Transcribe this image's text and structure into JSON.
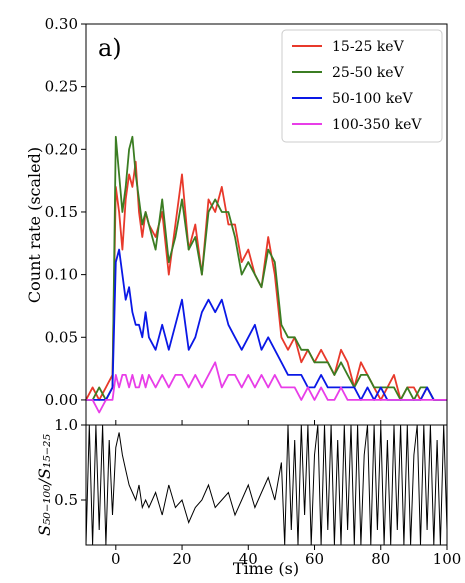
{
  "chart_data": {
    "type": "line",
    "panel_label": "a)",
    "xlabel": "Time (s)",
    "top_panel": {
      "ylabel": "Count rate (scaled)",
      "xlim": [
        -9,
        100
      ],
      "ylim": [
        -0.02,
        0.3
      ],
      "yticks": [
        "0.00",
        "0.05",
        "0.10",
        "0.15",
        "0.20",
        "0.25",
        "0.30"
      ],
      "yticks_values": [
        0,
        0.05,
        0.1,
        0.15,
        0.2,
        0.25,
        0.3
      ],
      "legend_position": "top-right",
      "series": [
        {
          "name": "15-25 keV",
          "color": "#e8392b",
          "x": [
            -9,
            -7,
            -5,
            -3,
            -1,
            0,
            1,
            2,
            3,
            4,
            5,
            6,
            7,
            8,
            9,
            10,
            12,
            14,
            16,
            18,
            20,
            22,
            24,
            26,
            28,
            30,
            32,
            34,
            36,
            38,
            40,
            42,
            44,
            46,
            48,
            50,
            52,
            54,
            56,
            58,
            60,
            62,
            64,
            66,
            68,
            70,
            72,
            74,
            76,
            78,
            80,
            82,
            84,
            86,
            88,
            90,
            92,
            94,
            96,
            98,
            100
          ],
          "y": [
            0.0,
            0.01,
            0.0,
            0.01,
            0.02,
            0.17,
            0.15,
            0.12,
            0.16,
            0.18,
            0.17,
            0.19,
            0.15,
            0.13,
            0.15,
            0.14,
            0.13,
            0.15,
            0.1,
            0.14,
            0.18,
            0.12,
            0.14,
            0.1,
            0.16,
            0.15,
            0.17,
            0.14,
            0.14,
            0.11,
            0.12,
            0.1,
            0.09,
            0.13,
            0.1,
            0.05,
            0.04,
            0.05,
            0.03,
            0.04,
            0.03,
            0.04,
            0.03,
            0.02,
            0.04,
            0.03,
            0.01,
            0.03,
            0.02,
            0.01,
            0.0,
            0.01,
            0.02,
            0.0,
            0.01,
            0.01,
            0.0,
            0.01,
            0.0,
            0.0,
            0.0
          ]
        },
        {
          "name": "25-50 keV",
          "color": "#3b7d23",
          "x": [
            -9,
            -7,
            -5,
            -3,
            -1,
            0,
            1,
            2,
            3,
            4,
            5,
            6,
            7,
            8,
            9,
            10,
            12,
            14,
            16,
            18,
            20,
            22,
            24,
            26,
            28,
            30,
            32,
            34,
            36,
            38,
            40,
            42,
            44,
            46,
            48,
            50,
            52,
            54,
            56,
            58,
            60,
            62,
            64,
            66,
            68,
            70,
            72,
            74,
            76,
            78,
            80,
            82,
            84,
            86,
            88,
            90,
            92,
            94,
            96,
            98,
            100
          ],
          "y": [
            0.0,
            0.0,
            0.01,
            0.0,
            0.01,
            0.21,
            0.18,
            0.15,
            0.17,
            0.2,
            0.21,
            0.18,
            0.16,
            0.14,
            0.15,
            0.14,
            0.12,
            0.16,
            0.11,
            0.13,
            0.16,
            0.12,
            0.13,
            0.1,
            0.15,
            0.16,
            0.15,
            0.15,
            0.13,
            0.1,
            0.11,
            0.1,
            0.09,
            0.12,
            0.11,
            0.06,
            0.05,
            0.05,
            0.04,
            0.04,
            0.03,
            0.03,
            0.03,
            0.02,
            0.03,
            0.02,
            0.01,
            0.02,
            0.02,
            0.01,
            0.01,
            0.01,
            0.01,
            0.0,
            0.01,
            0.0,
            0.01,
            0.01,
            0.0,
            0.0,
            0.0
          ]
        },
        {
          "name": "50-100 keV",
          "color": "#0a18e6",
          "x": [
            -9,
            -7,
            -5,
            -3,
            -1,
            0,
            1,
            2,
            3,
            4,
            5,
            6,
            7,
            8,
            9,
            10,
            12,
            14,
            16,
            18,
            20,
            22,
            24,
            26,
            28,
            30,
            32,
            34,
            36,
            38,
            40,
            42,
            44,
            46,
            48,
            50,
            52,
            54,
            56,
            58,
            60,
            62,
            64,
            66,
            68,
            70,
            72,
            74,
            76,
            78,
            80,
            82,
            84,
            86,
            88,
            90,
            92,
            94,
            96,
            98,
            100
          ],
          "y": [
            0.0,
            0.0,
            0.0,
            0.0,
            0.01,
            0.11,
            0.12,
            0.1,
            0.08,
            0.09,
            0.07,
            0.06,
            0.06,
            0.05,
            0.07,
            0.05,
            0.04,
            0.06,
            0.04,
            0.06,
            0.08,
            0.04,
            0.05,
            0.07,
            0.08,
            0.07,
            0.08,
            0.06,
            0.05,
            0.04,
            0.05,
            0.06,
            0.04,
            0.05,
            0.04,
            0.03,
            0.02,
            0.02,
            0.02,
            0.01,
            0.01,
            0.02,
            0.01,
            0.01,
            0.01,
            0.01,
            0.01,
            0.0,
            0.01,
            0.0,
            0.01,
            0.0,
            0.0,
            0.0,
            0.0,
            0.0,
            0.0,
            0.01,
            0.0,
            0.0,
            0.0
          ]
        },
        {
          "name": "100-350 keV",
          "color": "#e83ee8",
          "x": [
            -9,
            -7,
            -5,
            -3,
            -1,
            0,
            1,
            2,
            3,
            4,
            5,
            6,
            7,
            8,
            9,
            10,
            12,
            14,
            16,
            18,
            20,
            22,
            24,
            26,
            28,
            30,
            32,
            34,
            36,
            38,
            40,
            42,
            44,
            46,
            48,
            50,
            52,
            54,
            56,
            58,
            60,
            62,
            64,
            66,
            68,
            70,
            72,
            74,
            76,
            78,
            80,
            82,
            84,
            86,
            88,
            90,
            92,
            94,
            96,
            98,
            100
          ],
          "y": [
            0.0,
            0.0,
            -0.01,
            0.0,
            0.0,
            0.02,
            0.01,
            0.02,
            0.02,
            0.01,
            0.02,
            0.01,
            0.01,
            0.02,
            0.01,
            0.02,
            0.01,
            0.02,
            0.01,
            0.02,
            0.02,
            0.01,
            0.02,
            0.01,
            0.02,
            0.03,
            0.01,
            0.02,
            0.02,
            0.01,
            0.02,
            0.01,
            0.02,
            0.01,
            0.02,
            0.01,
            0.01,
            0.01,
            0.0,
            0.01,
            0.0,
            0.01,
            0.0,
            0.0,
            0.01,
            0.0,
            0.0,
            0.0,
            0.0,
            0.0,
            0.0,
            0.0,
            0.0,
            0.0,
            0.0,
            0.0,
            0.0,
            0.0,
            0.0,
            0.0,
            0.0
          ]
        }
      ]
    },
    "bottom_panel": {
      "ylabel": "S₅₀₋₁₀₀/S₁₅₋₂₅",
      "xlim": [
        -9,
        100
      ],
      "ylim": [
        0.2,
        1.0
      ],
      "yticks": [
        "0.5",
        "1.0"
      ],
      "yticks_values": [
        0.5,
        1.0
      ],
      "xticks": [
        "0",
        "20",
        "40",
        "60",
        "80",
        "100"
      ],
      "xticks_values": [
        0,
        20,
        40,
        60,
        80,
        100
      ],
      "series": [
        {
          "name": "",
          "color": "#000000",
          "x": [
            -9,
            -8,
            -7,
            -6,
            -5,
            -4,
            -3,
            -2,
            -1,
            0,
            1,
            2,
            3,
            4,
            5,
            6,
            7,
            8,
            9,
            10,
            12,
            14,
            16,
            18,
            20,
            22,
            24,
            26,
            28,
            30,
            32,
            34,
            36,
            38,
            40,
            42,
            44,
            46,
            48,
            50,
            51,
            52,
            53,
            54,
            55,
            56,
            57,
            58,
            59,
            60,
            61,
            62,
            63,
            64,
            65,
            66,
            67,
            68,
            69,
            70,
            71,
            72,
            73,
            74,
            75,
            76,
            77,
            78,
            79,
            80,
            81,
            82,
            83,
            84,
            85,
            86,
            87,
            88,
            89,
            90,
            91,
            92,
            93,
            94,
            95,
            96,
            97,
            98,
            99,
            100
          ],
          "y": [
            0.2,
            1.0,
            0.2,
            1.0,
            0.3,
            1.0,
            0.2,
            0.9,
            0.4,
            0.85,
            0.95,
            0.8,
            0.7,
            0.6,
            0.55,
            0.5,
            0.6,
            0.45,
            0.5,
            0.45,
            0.55,
            0.4,
            0.6,
            0.45,
            0.5,
            0.35,
            0.45,
            0.5,
            0.6,
            0.45,
            0.5,
            0.55,
            0.4,
            0.5,
            0.6,
            0.45,
            0.55,
            0.65,
            0.5,
            0.75,
            0.2,
            1.0,
            0.3,
            0.9,
            0.2,
            1.0,
            0.4,
            1.0,
            0.2,
            0.8,
            1.0,
            0.2,
            1.0,
            0.3,
            1.0,
            0.2,
            0.9,
            0.2,
            1.0,
            0.3,
            1.0,
            0.2,
            1.0,
            0.2,
            0.8,
            1.0,
            0.2,
            1.0,
            0.3,
            1.0,
            0.2,
            0.9,
            0.2,
            1.0,
            0.3,
            1.0,
            0.2,
            1.0,
            0.2,
            0.8,
            1.0,
            0.2,
            1.0,
            0.3,
            1.0,
            0.2,
            0.9,
            0.2,
            1.0,
            0.3
          ]
        }
      ]
    }
  }
}
